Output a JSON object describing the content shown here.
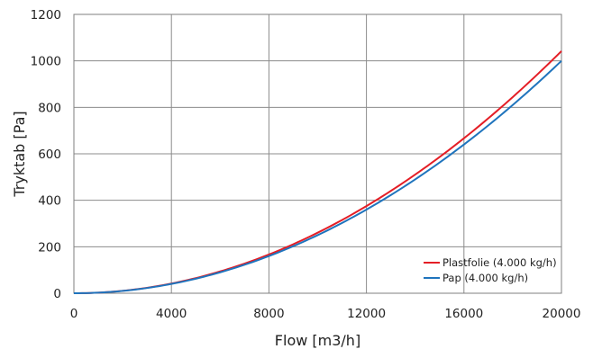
{
  "chart_data": {
    "type": "line",
    "title": "",
    "xlabel": "Flow [m3/h]",
    "ylabel": "Tryktab [Pa]",
    "xlim": [
      0,
      20000
    ],
    "ylim": [
      0,
      1200
    ],
    "xticks": [
      0,
      4000,
      8000,
      12000,
      16000,
      20000
    ],
    "yticks": [
      0,
      200,
      400,
      600,
      800,
      1000,
      1200
    ],
    "grid": true,
    "legend_position": "bottom-right",
    "series": [
      {
        "name": "Plastfolie (4.000 kg/h)",
        "color": "#e41e26",
        "x": [
          0,
          1000,
          2000,
          3000,
          4000,
          5000,
          6000,
          7000,
          8000,
          9000,
          10000,
          11000,
          12000,
          13000,
          14000,
          15000,
          16000,
          17000,
          18000,
          19000,
          20000
        ],
        "values": [
          0,
          3,
          10,
          23,
          42,
          65,
          94,
          128,
          167,
          211,
          261,
          315,
          375,
          440,
          510,
          586,
          666,
          752,
          843,
          940,
          1042
        ]
      },
      {
        "name": "Pap (4.000 kg/h)",
        "color": "#1f74bd",
        "x": [
          0,
          1000,
          2000,
          3000,
          4000,
          5000,
          6000,
          7000,
          8000,
          9000,
          10000,
          11000,
          12000,
          13000,
          14000,
          15000,
          16000,
          17000,
          18000,
          19000,
          20000
        ],
        "values": [
          0,
          3,
          10,
          22,
          40,
          63,
          90,
          123,
          160,
          203,
          250,
          303,
          360,
          423,
          490,
          563,
          640,
          723,
          810,
          903,
          1000
        ]
      }
    ]
  }
}
